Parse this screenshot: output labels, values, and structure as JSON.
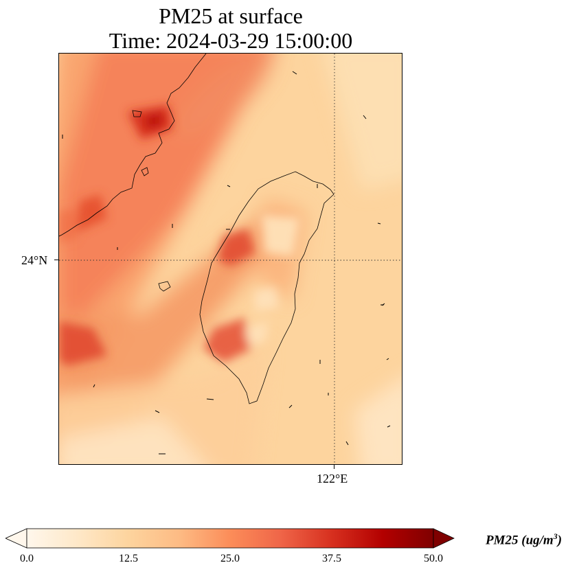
{
  "title": {
    "line1": "PM25 at surface",
    "line2": "Time: 2024-03-29 15:00:00"
  },
  "map": {
    "variable": "PM25",
    "level": "surface",
    "projection": "lat-lon",
    "gridlines": {
      "style": "dotted",
      "lat": [
        "24°N"
      ],
      "lon": [
        "122°E"
      ]
    },
    "coastlines": true,
    "features": [
      "Taiwan",
      "China coast (Fujian)",
      "Penghu islands"
    ],
    "wind_arrows": true,
    "colormap": "OrRd"
  },
  "colorbar": {
    "ticks": [
      "0.0",
      "12.5",
      "25.0",
      "37.5",
      "50.0"
    ],
    "min": 0.0,
    "max": 50.0,
    "extend": "both",
    "label_main": "PM25 (ug/m",
    "label_sup": "3",
    "label_end": ")",
    "colors": [
      "#fff7ec",
      "#fee8c8",
      "#fdd49e",
      "#fdbb84",
      "#fc8d59",
      "#ef6548",
      "#d7301f",
      "#b30000",
      "#7f0000"
    ]
  }
}
